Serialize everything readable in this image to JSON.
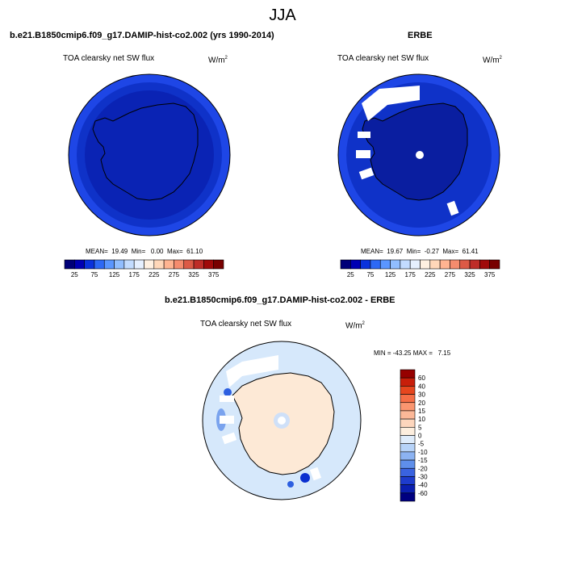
{
  "page_title": "JJA",
  "panels": [
    {
      "title": "b.e21.B1850cmip6.f09_g17.DAMIP-hist-co2.002 (yrs 1990-2014)",
      "variable": "TOA clearsky net SW flux",
      "units": "W/m",
      "units_exp": "2",
      "stats": "MEAN=  19.49  Min=   0.00  Max=  61.10"
    },
    {
      "title": "ERBE",
      "variable": "TOA clearsky net SW flux",
      "units": "W/m",
      "units_exp": "2",
      "stats": "MEAN=  19.67  Min=  -0.27  Max=  61.41"
    },
    {
      "title": "b.e21.B1850cmip6.f09_g17.DAMIP-hist-co2.002 - ERBE",
      "variable": "TOA clearsky net SW flux",
      "units": "W/m",
      "units_exp": "2",
      "stats": "MIN = -43.25 MAX =   7.15"
    }
  ],
  "chart_data": [
    {
      "type": "heatmap",
      "title": "b.e21.B1850cmip6.f09_g17.DAMIP-hist-co2.002 (yrs 1990-2014)",
      "projection": "south polar stereographic",
      "units": "W/m2",
      "mean": 19.49,
      "min": 0.0,
      "max": 61.1,
      "colorbar": {
        "orientation": "horizontal",
        "tick_labels": [
          "25",
          "75",
          "125",
          "175",
          "225",
          "275",
          "325",
          "375"
        ],
        "colors": [
          "#000078",
          "#0000b4",
          "#0a32dc",
          "#2d69f5",
          "#5a96ff",
          "#91beff",
          "#c3dcff",
          "#e6f0ff",
          "#fff0e1",
          "#ffd7b9",
          "#ffb491",
          "#f58c6e",
          "#dc5a46",
          "#be2d28",
          "#a00a0a",
          "#780000"
        ]
      },
      "fill_regions": [
        "#1e46e6",
        "#0f32c8",
        "#0a23b4"
      ]
    },
    {
      "type": "heatmap",
      "title": "ERBE",
      "projection": "south polar stereographic",
      "units": "W/m2",
      "mean": 19.67,
      "min": -0.27,
      "max": 61.41,
      "colorbar": {
        "orientation": "horizontal",
        "tick_labels": [
          "25",
          "75",
          "125",
          "175",
          "225",
          "275",
          "325",
          "375"
        ],
        "colors": [
          "#000078",
          "#0000b4",
          "#0a32dc",
          "#2d69f5",
          "#5a96ff",
          "#91beff",
          "#c3dcff",
          "#e6f0ff",
          "#fff0e1",
          "#ffd7b9",
          "#ffb491",
          "#f58c6e",
          "#dc5a46",
          "#be2d28",
          "#a00a0a",
          "#780000"
        ]
      },
      "fill_regions": [
        "#1e46e6",
        "#0f32c8",
        "#0a1ea0"
      ]
    },
    {
      "type": "heatmap",
      "title": "b.e21.B1850cmip6.f09_g17.DAMIP-hist-co2.002 - ERBE",
      "projection": "south polar stereographic",
      "units": "W/m2",
      "min": -43.25,
      "max": 7.15,
      "colorbar": {
        "orientation": "vertical",
        "tick_labels": [
          "60",
          "40",
          "30",
          "20",
          "15",
          "10",
          "5",
          "0",
          "-5",
          "-10",
          "-15",
          "-20",
          "-30",
          "-40",
          "-60"
        ],
        "colors": [
          "#960000",
          "#c81e0a",
          "#e6461e",
          "#f56e46",
          "#fa9670",
          "#fcb898",
          "#fdd6bd",
          "#fdeede",
          "#dfecfb",
          "#b7d3f8",
          "#8cb3f2",
          "#5f8fea",
          "#3a63e0",
          "#1e3ccd",
          "#0b1fb0",
          "#000080"
        ]
      },
      "fill_regions": [
        "#fde9d6",
        "#d6e8fb",
        "#b5d0f7",
        "#7aa3ee",
        "#2d5fe0",
        "#0b2fd0"
      ]
    }
  ]
}
